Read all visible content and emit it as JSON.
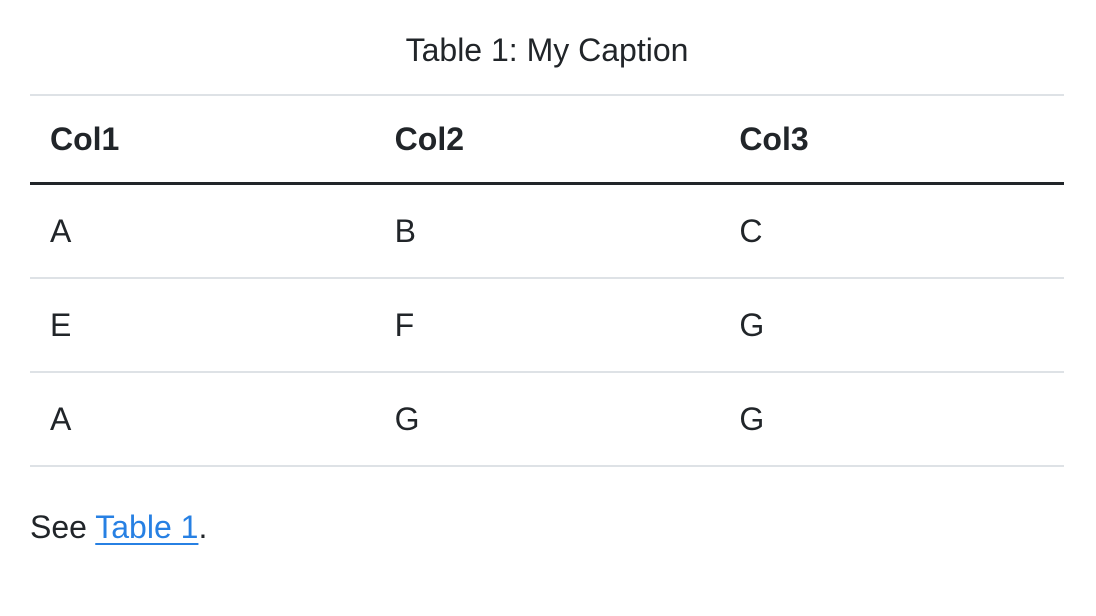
{
  "colors": {
    "background": "#ffffff",
    "text": "#212529",
    "link": "#2780e3",
    "border_light": "#dee2e6",
    "border_dark": "#212529"
  },
  "table": {
    "caption": "Table 1: My Caption",
    "headers": [
      "Col1",
      "Col2",
      "Col3"
    ],
    "rows": [
      [
        "A",
        "B",
        "C"
      ],
      [
        "E",
        "F",
        "G"
      ],
      [
        "A",
        "G",
        "G"
      ]
    ]
  },
  "crossref": {
    "before": "See ",
    "link": "Table 1",
    "after": "."
  }
}
